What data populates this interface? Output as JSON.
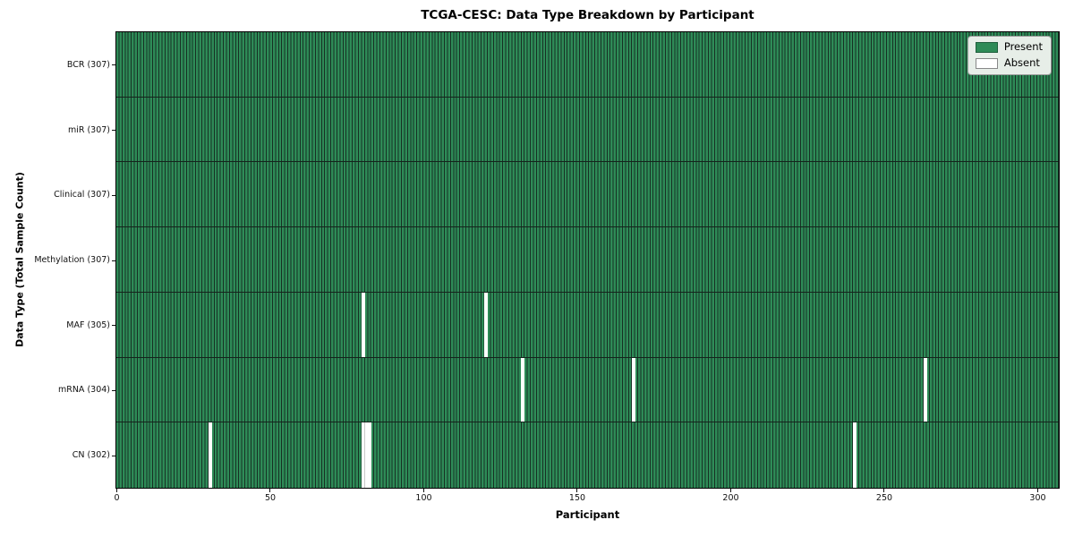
{
  "chart_data": {
    "type": "heatmap",
    "title": "TCGA-CESC: Data Type Breakdown by Participant",
    "xlabel": "Participant",
    "ylabel": "Data Type (Total Sample Count)",
    "x_ticks": [
      0,
      50,
      100,
      150,
      200,
      250,
      300
    ],
    "xlim": [
      0,
      307
    ],
    "n_participants": 307,
    "grid": false,
    "rows": [
      {
        "label": "BCR (307)",
        "data_type": "BCR",
        "total": 307,
        "absent_participants": []
      },
      {
        "label": "miR (307)",
        "data_type": "miR",
        "total": 307,
        "absent_participants": []
      },
      {
        "label": "Clinical (307)",
        "data_type": "Clinical",
        "total": 307,
        "absent_participants": []
      },
      {
        "label": "Methylation (307)",
        "data_type": "Methylation",
        "total": 307,
        "absent_participants": []
      },
      {
        "label": "MAF (305)",
        "data_type": "MAF",
        "total": 305,
        "absent_participants": [
          80,
          120
        ]
      },
      {
        "label": "mRNA (304)",
        "data_type": "mRNA",
        "total": 304,
        "absent_participants": [
          132,
          168,
          263
        ]
      },
      {
        "label": "CN (302)",
        "data_type": "CN",
        "total": 302,
        "absent_participants": [
          30,
          80,
          81,
          82,
          240
        ]
      }
    ],
    "legend": {
      "position": "upper right",
      "entries": [
        {
          "label": "Present",
          "color": "#2e8b57"
        },
        {
          "label": "Absent",
          "color": "#ffffff"
        }
      ]
    },
    "colors": {
      "present": "#2e8b57",
      "absent": "#ffffff",
      "cell_edge": "#173024",
      "row_divider": "#14241c",
      "absent_divider": "#c8c8c8",
      "present_swatch_edge": "#1e5e3c",
      "absent_swatch_edge": "#888888"
    }
  }
}
